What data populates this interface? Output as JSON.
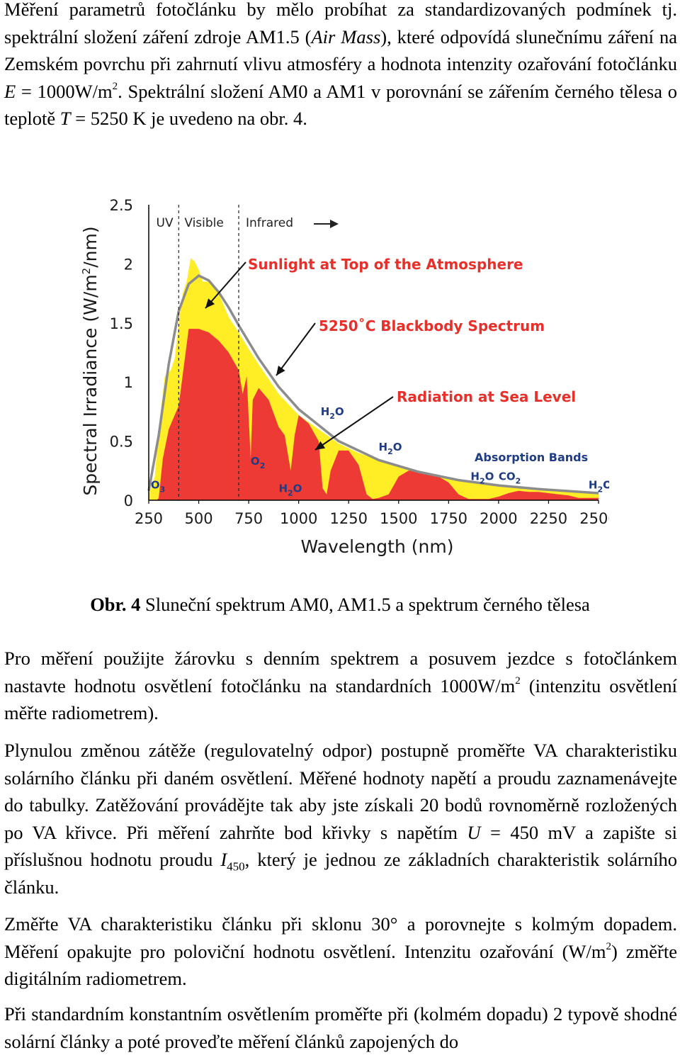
{
  "para1": {
    "a": "Měření parametrů fotočlánku by mělo probíhat za standardizovaných podmínek tj. spektrální složení záření zdroje AM1.5 (",
    "air_mass": "Air Mass",
    "b": "), které odpovídá slunečnímu záření na Zemském povrchu při zahrnutí vlivu atmosféry a hodnota intenzity ozařování fotočlánku ",
    "E": "E",
    "c": " = 1000W/m",
    "sup": "2",
    "d": ". Spektrální složení AM0 a AM1 v porovnání se zářením černého tělesa o teplotě ",
    "T": "T",
    "e": " = 5250 K je uvedeno na obr. 4."
  },
  "caption": {
    "label": "Obr. 4",
    "text": " Sluneční spektrum AM0, AM1.5 a spektrum černého tělesa"
  },
  "para2": {
    "a": "Pro měření použijte žárovku s denním spektrem a posuvem jezdce s fotočlánkem nastavte hodnotu osvětlení fotočlánku na standardních 1000W/m",
    "sup": "2",
    "b": " (intenzitu osvětlení měřte radiometrem)."
  },
  "para3": {
    "a": "Plynulou změnou zátěže (regulovatelný odpor) postupně proměřte VA charakteristiku solárního článku při daném osvětlení. Měřené hodnoty napětí a proudu zaznamenávejte do tabulky. Zatěžování provádějte tak aby jste získali 20 bodů rovnoměrně rozložených po VA křivce. Při měření zahrňte bod křivky s napětím ",
    "U": "U",
    "b": " = 450 mV a zapište si příslušnou hodnotu proudu ",
    "I": "I",
    "sub": "450",
    "c": ", který je jednou ze základních charakteristik solárního článku."
  },
  "para4": {
    "a": "Změřte VA charakteristiku článku při sklonu 30° a porovnejte s kolmým dopadem. Měření opakujte pro poloviční hodnotu osvětlení. Intenzitu ozařování (W/m",
    "sup": "2",
    "b": ") změřte digitálním radiometrem."
  },
  "para5": {
    "text": "Při standardním konstantním osvětlením proměřte při (kolmém dopadu) 2 typově shodné solární články a poté proveďte měření článků zapojených do"
  },
  "chart_data": {
    "type": "area",
    "xlabel": "Wavelength (nm)",
    "ylabel_pre": "Spectral Irradiance (W/m",
    "ylabel_sup": "2",
    "ylabel_post": "/nm)",
    "xlim": [
      250,
      2500
    ],
    "ylim": [
      0,
      2.5
    ],
    "x_ticks": [
      250,
      500,
      750,
      1000,
      1250,
      1500,
      1750,
      2000,
      2250,
      2500
    ],
    "y_ticks": [
      0,
      0.5,
      1,
      1.5,
      2,
      2.5
    ],
    "y_tick_labels": [
      "0",
      "0.5",
      "1",
      "1.5",
      "2",
      "2.5"
    ],
    "regions": [
      "UV",
      "Visible",
      "Infrared"
    ],
    "series": [
      {
        "name": "Sunlight at Top of the Atmosphere",
        "color": "#ffed26",
        "x": [
          250,
          280,
          300,
          330,
          360,
          380,
          400,
          420,
          440,
          460,
          480,
          500,
          520,
          550,
          600,
          650,
          700,
          750,
          800,
          900,
          1000,
          1100,
          1200,
          1300,
          1400,
          1500,
          1600,
          1700,
          1800,
          2000,
          2200,
          2400,
          2500
        ],
        "y": [
          0.05,
          0.2,
          0.6,
          1.05,
          1.1,
          1.2,
          1.5,
          1.75,
          1.85,
          2.05,
          2.02,
          1.95,
          1.85,
          1.85,
          1.75,
          1.55,
          1.42,
          1.28,
          1.15,
          0.9,
          0.72,
          0.6,
          0.48,
          0.4,
          0.34,
          0.28,
          0.25,
          0.2,
          0.17,
          0.12,
          0.09,
          0.07,
          0.06
        ]
      },
      {
        "name": "5250°C Blackbody Spectrum",
        "color": "#8c8c8c",
        "x": [
          250,
          300,
          350,
          400,
          450,
          500,
          550,
          600,
          650,
          700,
          800,
          900,
          1000,
          1200,
          1400,
          1600,
          1800,
          2000,
          2200,
          2500
        ],
        "y": [
          0.08,
          0.55,
          1.15,
          1.6,
          1.83,
          1.9,
          1.86,
          1.76,
          1.63,
          1.48,
          1.2,
          0.96,
          0.77,
          0.5,
          0.34,
          0.24,
          0.17,
          0.125,
          0.095,
          0.06
        ]
      },
      {
        "name": "Radiation at Sea Level",
        "color": "#ee3a35",
        "x": [
          250,
          290,
          300,
          320,
          350,
          400,
          450,
          500,
          550,
          600,
          650,
          700,
          720,
          740,
          760,
          770,
          800,
          850,
          900,
          930,
          960,
          980,
          1000,
          1050,
          1100,
          1120,
          1140,
          1160,
          1200,
          1250,
          1300,
          1340,
          1370,
          1400,
          1450,
          1500,
          1550,
          1600,
          1650,
          1700,
          1750,
          1800,
          1850,
          1900,
          1950,
          2000,
          2050,
          2100,
          2150,
          2200,
          2250,
          2300,
          2350,
          2400,
          2450,
          2500
        ],
        "y": [
          0,
          0,
          0.02,
          0.35,
          0.6,
          0.8,
          1.45,
          1.45,
          1.42,
          1.35,
          1.25,
          1.1,
          0.9,
          1.05,
          0.35,
          0.85,
          0.95,
          0.85,
          0.62,
          0.55,
          0.25,
          0.55,
          0.72,
          0.65,
          0.5,
          0.1,
          0.05,
          0.25,
          0.42,
          0.42,
          0.3,
          0.05,
          0.01,
          0.02,
          0.05,
          0.2,
          0.25,
          0.25,
          0.22,
          0.2,
          0.15,
          0.05,
          0.01,
          0.01,
          0.01,
          0.03,
          0.06,
          0.08,
          0.07,
          0.07,
          0.06,
          0.05,
          0.04,
          0.02,
          0.02,
          0.02
        ]
      }
    ],
    "annotations": {
      "top_atmosphere": "Sunlight at Top of the Atmosphere",
      "blackbody": "5250˚C Blackbody Spectrum",
      "sea_level": "Radiation at Sea Level",
      "absorption": "Absorption Bands"
    },
    "absorbers": [
      {
        "label": "O",
        "sub": "3",
        "x": 260,
        "y": 0.1
      },
      {
        "label": "O",
        "sub": "2",
        "x": 760,
        "y": 0.3
      },
      {
        "label": "H",
        "sub": "2",
        "post": "O",
        "x": 900,
        "y": 0.07
      },
      {
        "label": "H",
        "sub": "2",
        "post": "O",
        "x": 1110,
        "y": 0.72
      },
      {
        "label": "H",
        "sub": "2",
        "post": "O",
        "x": 1400,
        "y": 0.42
      },
      {
        "label": "H",
        "sub": "2",
        "post": "O",
        "x": 1860,
        "y": 0.17
      },
      {
        "label": "CO",
        "sub": "2",
        "x": 2000,
        "y": 0.17
      },
      {
        "label": "H",
        "sub": "2",
        "post": "O",
        "x": 2450,
        "y": 0.1
      }
    ]
  }
}
